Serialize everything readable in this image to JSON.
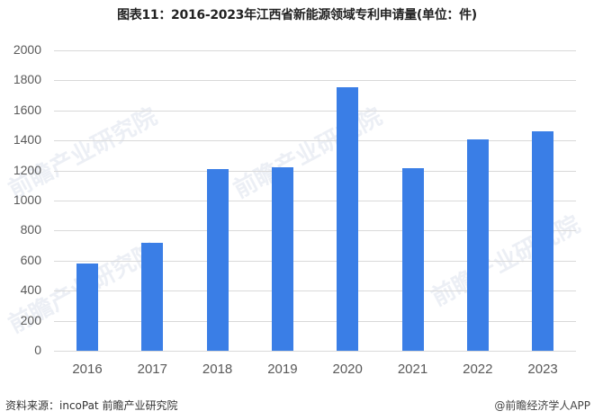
{
  "title": "图表11：2016-2023年江西省新能源领域专利申请量(单位：件)",
  "source": "资料来源：incoPat 前瞻产业研究院",
  "credit": "@前瞻经济学人APP",
  "watermark": "前瞻产业研究院",
  "colors": {
    "bar": "#3a7ee6",
    "grid": "#d9d9d9",
    "axis_text": "#595959"
  },
  "y_ticks": [
    "2000",
    "1800",
    "1600",
    "1400",
    "1200",
    "1000",
    "800",
    "600",
    "400",
    "200",
    "0"
  ],
  "x_ticks": [
    "2016",
    "2017",
    "2018",
    "2019",
    "2020",
    "2021",
    "2022",
    "2023"
  ],
  "chart_data": {
    "type": "bar",
    "title": "图表11：2016-2023年江西省新能源领域专利申请量(单位：件)",
    "xlabel": "",
    "ylabel": "",
    "categories": [
      "2016",
      "2017",
      "2018",
      "2019",
      "2020",
      "2021",
      "2022",
      "2023"
    ],
    "values": [
      580,
      720,
      1212,
      1220,
      1757,
      1214,
      1410,
      1463
    ],
    "ylim": [
      0,
      2000
    ],
    "yticks": [
      0,
      200,
      400,
      600,
      800,
      1000,
      1200,
      1400,
      1600,
      1800,
      2000
    ],
    "grid": true,
    "legend": null
  }
}
